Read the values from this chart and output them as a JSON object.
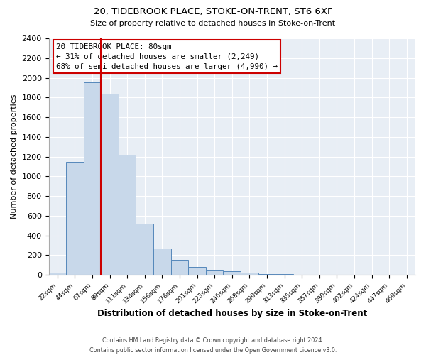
{
  "title1": "20, TIDEBROOK PLACE, STOKE-ON-TRENT, ST6 6XF",
  "title2": "Size of property relative to detached houses in Stoke-on-Trent",
  "xlabel": "Distribution of detached houses by size in Stoke-on-Trent",
  "ylabel": "Number of detached properties",
  "bin_labels": [
    "22sqm",
    "44sqm",
    "67sqm",
    "89sqm",
    "111sqm",
    "134sqm",
    "156sqm",
    "178sqm",
    "201sqm",
    "223sqm",
    "246sqm",
    "268sqm",
    "290sqm",
    "313sqm",
    "335sqm",
    "357sqm",
    "380sqm",
    "402sqm",
    "424sqm",
    "447sqm",
    "469sqm"
  ],
  "bar_heights": [
    25,
    1150,
    1950,
    1840,
    1220,
    520,
    265,
    150,
    80,
    50,
    35,
    25,
    10,
    5,
    3,
    2,
    1,
    0,
    0,
    0,
    0
  ],
  "bar_color": "#c8d8ea",
  "bar_edge_color": "#5588bb",
  "vline_color": "#cc0000",
  "ylim": [
    0,
    2400
  ],
  "yticks": [
    0,
    200,
    400,
    600,
    800,
    1000,
    1200,
    1400,
    1600,
    1800,
    2000,
    2200,
    2400
  ],
  "annotation_title": "20 TIDEBROOK PLACE: 80sqm",
  "annotation_line1": "← 31% of detached houses are smaller (2,249)",
  "annotation_line2": "68% of semi-detached houses are larger (4,990) →",
  "annotation_box_color": "#ffffff",
  "annotation_box_edge": "#cc0000",
  "footer1": "Contains HM Land Registry data © Crown copyright and database right 2024.",
  "footer2": "Contains public sector information licensed under the Open Government Licence v3.0.",
  "bg_color": "#ffffff",
  "plot_bg_color": "#e8eef5"
}
